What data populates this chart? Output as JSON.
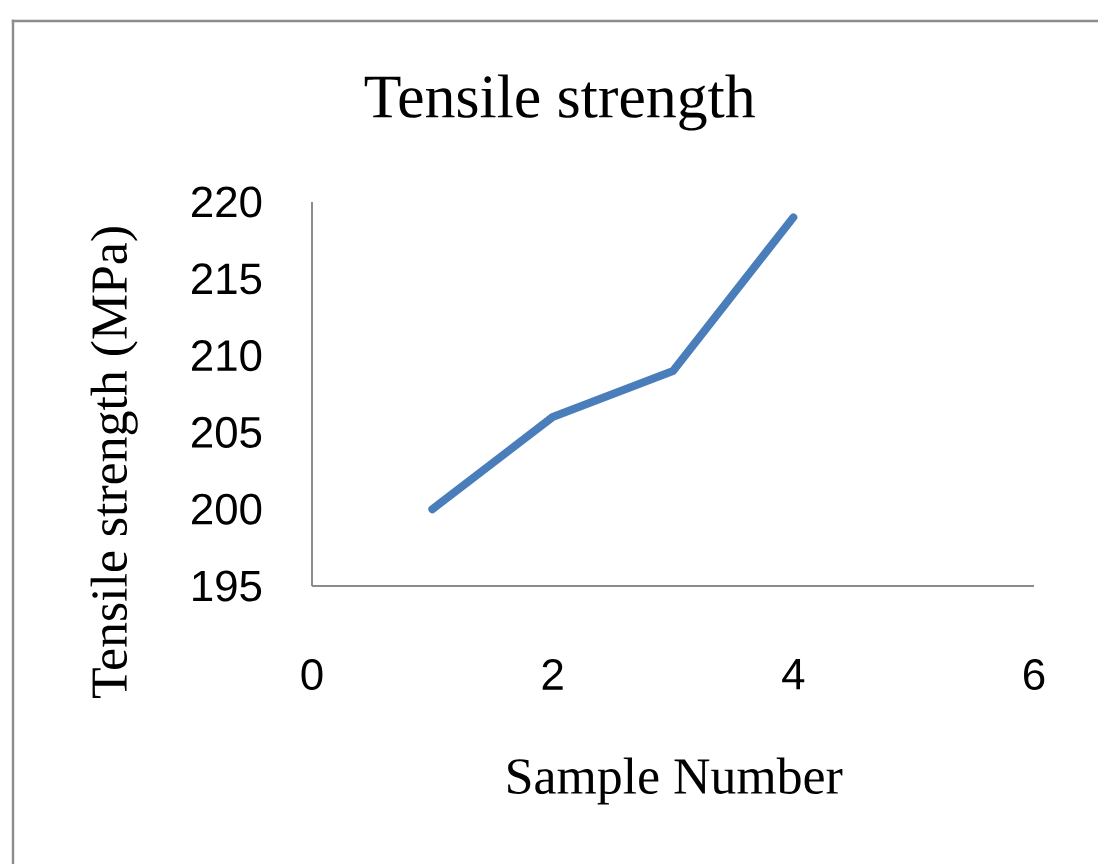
{
  "chart_data": {
    "type": "line",
    "title": "Tensile strength",
    "xlabel": "Sample Number",
    "ylabel": "Tensile strength (MPa)",
    "x": [
      1,
      2,
      3,
      4
    ],
    "values": [
      200,
      206,
      209,
      219
    ],
    "color": "#4a7ebb",
    "xlim": [
      0,
      6
    ],
    "xticks": [
      0,
      2,
      4,
      6
    ],
    "ylim": [
      195,
      220
    ],
    "yticks": [
      195,
      200,
      205,
      210,
      215,
      220
    ],
    "marker": "none",
    "line_style": "solid"
  }
}
